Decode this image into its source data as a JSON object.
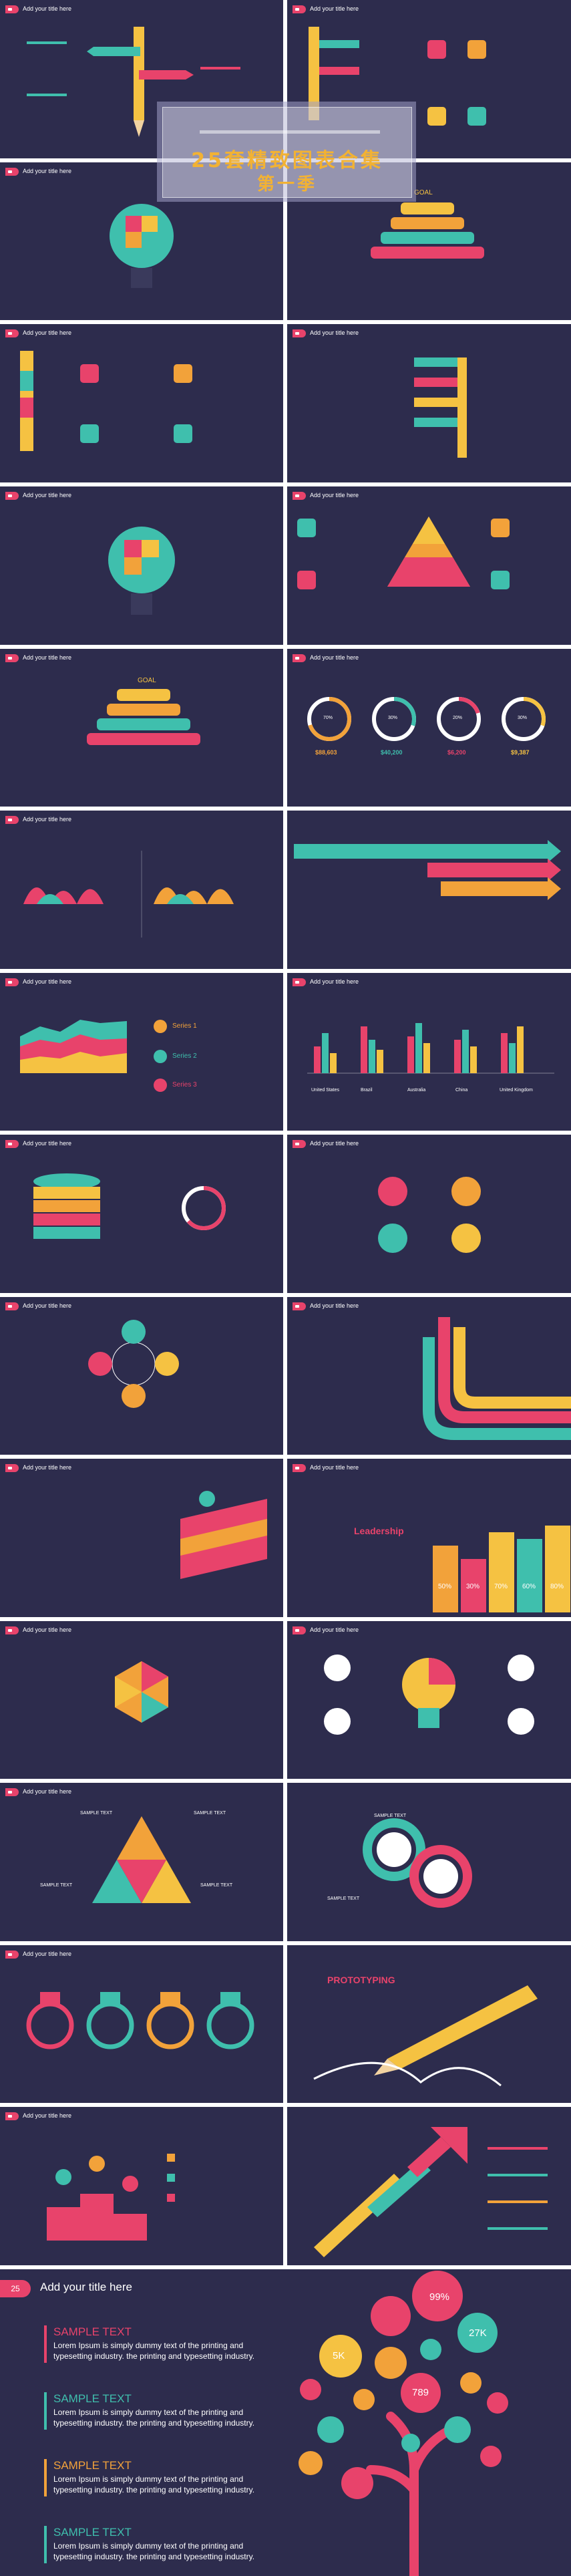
{
  "slide_title": "Add your title here",
  "cover": {
    "title": "25套精致图表合集",
    "subtitle": "第一季"
  },
  "goal": "GOAL",
  "leadership": "Leadership",
  "prototyping": "PROTOTYPING",
  "progress_percents": [
    "70%",
    "30%",
    "20%",
    "30%"
  ],
  "money_values": [
    "$88,603",
    "$40,200",
    "$6,200",
    "$9,387"
  ],
  "series_labels": [
    "Series 1",
    "Series 2",
    "Series 3"
  ],
  "bar_countries": [
    "United States",
    "Brazil",
    "Australia",
    "China",
    "United Kingdom"
  ],
  "leader_pcts": [
    "50%",
    "30%",
    "70%",
    "60%",
    "80%"
  ],
  "sample_text": "SAMPLE TEXT",
  "bubble_values": [
    "99%",
    "27K",
    "5K",
    "789"
  ],
  "last": {
    "number": "25",
    "title": "Add your title here",
    "items": [
      {
        "head": "SAMPLE TEXT",
        "body": "Lorem Ipsum is simply dummy text of the printing and typesetting industry. the printing and typesetting industry.",
        "color": "#e8436b"
      },
      {
        "head": "SAMPLE TEXT",
        "body": "Lorem Ipsum is simply dummy text of the printing and typesetting industry. the printing and typesetting industry.",
        "color": "#3fbfad"
      },
      {
        "head": "SAMPLE TEXT",
        "body": "Lorem Ipsum is simply dummy text of the printing and typesetting industry. the printing and typesetting industry.",
        "color": "#f2a23a"
      },
      {
        "head": "SAMPLE TEXT",
        "body": "Lorem Ipsum is simply dummy text of the printing and typesetting industry. the printing and typesetting industry.",
        "color": "#3fbfad"
      }
    ]
  },
  "colors": {
    "bg": "#2d2c4d",
    "pink": "#e8436b",
    "teal": "#3fbfad",
    "orange": "#f2a23a",
    "yellow": "#f5c242",
    "white": "#ffffff"
  }
}
